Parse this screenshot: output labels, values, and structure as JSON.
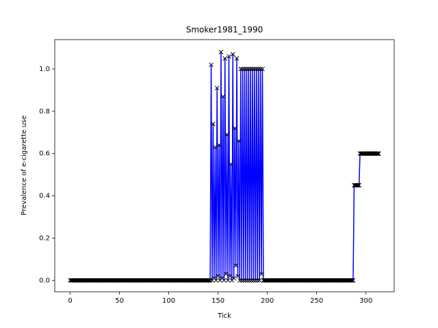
{
  "chart_data": {
    "type": "line",
    "title": "Smoker1981_1990",
    "x_label": "Tick",
    "y_label": "Prevalence of e-cigarette use",
    "color": "#0000ff",
    "marker": "x",
    "marker_color": "#000000",
    "xlim": [
      -15.65,
      328.65
    ],
    "xticks": [
      0,
      50,
      100,
      150,
      200,
      250,
      300
    ],
    "ylim": [
      -0.054,
      1.139
    ],
    "yticks": [
      {
        "value": 0,
        "label": "0.0"
      },
      0.2,
      0.4,
      0.6,
      0.8,
      {
        "value": 1,
        "label": "1.0"
      }
    ],
    "x": [
      0,
      1,
      2,
      3,
      4,
      5,
      6,
      7,
      8,
      9,
      10,
      11,
      12,
      13,
      14,
      15,
      16,
      17,
      18,
      19,
      20,
      21,
      22,
      23,
      24,
      25,
      26,
      27,
      28,
      29,
      30,
      31,
      32,
      33,
      34,
      35,
      36,
      37,
      38,
      39,
      40,
      41,
      42,
      43,
      44,
      45,
      46,
      47,
      48,
      49,
      50,
      51,
      52,
      53,
      54,
      55,
      56,
      57,
      58,
      59,
      60,
      61,
      62,
      63,
      64,
      65,
      66,
      67,
      68,
      69,
      70,
      71,
      72,
      73,
      74,
      75,
      76,
      77,
      78,
      79,
      80,
      81,
      82,
      83,
      84,
      85,
      86,
      87,
      88,
      89,
      90,
      91,
      92,
      93,
      94,
      95,
      96,
      97,
      98,
      99,
      100,
      101,
      102,
      103,
      104,
      105,
      106,
      107,
      108,
      109,
      110,
      111,
      112,
      113,
      114,
      115,
      116,
      117,
      118,
      119,
      120,
      121,
      122,
      123,
      124,
      125,
      126,
      127,
      128,
      129,
      130,
      131,
      132,
      133,
      134,
      135,
      136,
      137,
      138,
      139,
      140,
      141,
      142,
      143,
      144,
      145,
      146,
      147,
      148,
      149,
      150,
      151,
      152,
      153,
      154,
      155,
      156,
      157,
      158,
      159,
      160,
      161,
      162,
      163,
      164,
      165,
      166,
      167,
      168,
      169,
      170,
      171,
      172,
      173,
      174,
      175,
      176,
      177,
      178,
      179,
      180,
      181,
      182,
      183,
      184,
      185,
      186,
      187,
      188,
      189,
      190,
      191,
      192,
      193,
      194,
      195,
      196,
      197,
      198,
      199,
      200,
      201,
      202,
      203,
      204,
      205,
      206,
      207,
      208,
      209,
      210,
      211,
      212,
      213,
      214,
      215,
      216,
      217,
      218,
      219,
      220,
      221,
      222,
      223,
      224,
      225,
      226,
      227,
      228,
      229,
      230,
      231,
      232,
      233,
      234,
      235,
      236,
      237,
      238,
      239,
      240,
      241,
      242,
      243,
      244,
      245,
      246,
      247,
      248,
      249,
      250,
      251,
      252,
      253,
      254,
      255,
      256,
      257,
      258,
      259,
      260,
      261,
      262,
      263,
      264,
      265,
      266,
      267,
      268,
      269,
      270,
      271,
      272,
      273,
      274,
      275,
      276,
      277,
      278,
      279,
      280,
      281,
      282,
      283,
      284,
      285,
      286,
      287,
      288,
      289,
      290,
      291,
      292,
      293,
      294,
      295,
      296,
      297,
      298,
      299,
      300,
      301,
      302,
      303,
      304,
      305,
      306,
      307,
      308,
      309,
      310,
      311,
      312,
      313
    ],
    "values": [
      0,
      0,
      0,
      0,
      0,
      0,
      0,
      0,
      0,
      0,
      0,
      0,
      0,
      0,
      0,
      0,
      0,
      0,
      0,
      0,
      0,
      0,
      0,
      0,
      0,
      0,
      0,
      0,
      0,
      0,
      0,
      0,
      0,
      0,
      0,
      0,
      0,
      0,
      0,
      0,
      0,
      0,
      0,
      0,
      0,
      0,
      0,
      0,
      0,
      0,
      0,
      0,
      0,
      0,
      0,
      0,
      0,
      0,
      0,
      0,
      0,
      0,
      0,
      0,
      0,
      0,
      0,
      0,
      0,
      0,
      0,
      0,
      0,
      0,
      0,
      0,
      0,
      0,
      0,
      0,
      0,
      0,
      0,
      0,
      0,
      0,
      0,
      0,
      0,
      0,
      0,
      0,
      0,
      0,
      0,
      0,
      0,
      0,
      0,
      0,
      0,
      0,
      0,
      0,
      0,
      0,
      0,
      0,
      0,
      0,
      0,
      0,
      0,
      0,
      0,
      0,
      0,
      0,
      0,
      0,
      0,
      0,
      0,
      0,
      0,
      0,
      0,
      0,
      0,
      0,
      0,
      0,
      0,
      0,
      0,
      0,
      0,
      0,
      0,
      0,
      0,
      0,
      0,
      1.02,
      0,
      0.74,
      0.01,
      0.63,
      0,
      0.91,
      0.02,
      0.64,
      0,
      1.08,
      0.01,
      0.87,
      0,
      1.05,
      0.03,
      0.69,
      0,
      1.06,
      0.02,
      0.55,
      0,
      1.07,
      0.01,
      0.72,
      0.07,
      1.05,
      0.02,
      0.66,
      0,
      1,
      0,
      1,
      0,
      1,
      0,
      1,
      0,
      1,
      0,
      1,
      0,
      1,
      0,
      1,
      0,
      1,
      0,
      1,
      0,
      1,
      0.03,
      1,
      0,
      0,
      0,
      0,
      0,
      0,
      0,
      0,
      0,
      0,
      0,
      0,
      0,
      0,
      0,
      0,
      0,
      0,
      0,
      0,
      0,
      0,
      0,
      0,
      0,
      0,
      0,
      0,
      0,
      0,
      0,
      0,
      0,
      0,
      0,
      0,
      0,
      0,
      0,
      0,
      0,
      0,
      0,
      0,
      0,
      0,
      0,
      0,
      0,
      0,
      0,
      0,
      0,
      0,
      0,
      0,
      0,
      0,
      0,
      0,
      0,
      0,
      0,
      0,
      0,
      0,
      0,
      0,
      0,
      0,
      0,
      0,
      0,
      0,
      0,
      0,
      0,
      0,
      0,
      0,
      0,
      0,
      0,
      0,
      0,
      0,
      0,
      0,
      0,
      0,
      0,
      0,
      0.45,
      0.45,
      0.45,
      0.45,
      0.45,
      0.45,
      0.6,
      0.6,
      0.6,
      0.6,
      0.6,
      0.6,
      0.6,
      0.6,
      0.6,
      0.6,
      0.6,
      0.6,
      0.6,
      0.6,
      0.6,
      0.6,
      0.6,
      0.6,
      0.6,
      0.6
    ]
  }
}
